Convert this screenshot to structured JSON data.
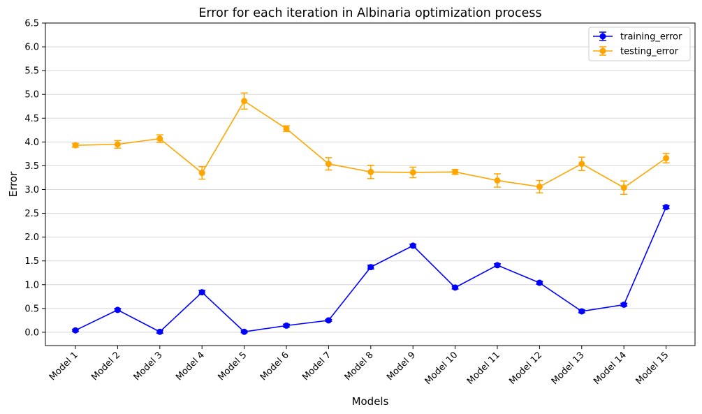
{
  "chart_data": {
    "type": "line",
    "title": "Error for each iteration in Albinaria optimization process",
    "xlabel": "Models",
    "ylabel": "Error",
    "categories": [
      "Model 1",
      "Model 2",
      "Model 3",
      "Model 4",
      "Model 5",
      "Model 6",
      "Model 7",
      "Model 8",
      "Model 9",
      "Model 10",
      "Model 11",
      "Model 12",
      "Model 13",
      "Model 14",
      "Model 15"
    ],
    "ylim": [
      -0.28,
      6.5
    ],
    "yticks": [
      "0.0",
      "0.5",
      "1.0",
      "1.5",
      "2.0",
      "2.5",
      "3.0",
      "3.5",
      "4.0",
      "4.5",
      "5.0",
      "5.5",
      "6.0",
      "6.5"
    ],
    "grid": "horizontal",
    "legend_position": "top-right",
    "series": [
      {
        "name": "training_error",
        "color": "#0000ff",
        "marker": "circle",
        "values": [
          0.04,
          0.47,
          0.01,
          0.84,
          0.01,
          0.14,
          0.25,
          1.37,
          1.82,
          0.94,
          1.41,
          1.04,
          0.44,
          0.58,
          2.63
        ],
        "errors": [
          0.02,
          0.03,
          0.03,
          0.04,
          0.02,
          0.03,
          0.02,
          0.04,
          0.03,
          0.03,
          0.03,
          0.03,
          0.03,
          0.03,
          0.03
        ]
      },
      {
        "name": "testing_error",
        "color": "#ffa500",
        "marker": "circle",
        "values": [
          3.93,
          3.95,
          4.07,
          3.35,
          4.86,
          4.28,
          3.54,
          3.37,
          3.36,
          3.37,
          3.19,
          3.06,
          3.54,
          3.04,
          3.66
        ],
        "errors": [
          0.04,
          0.08,
          0.08,
          0.13,
          0.17,
          0.06,
          0.13,
          0.14,
          0.11,
          0.05,
          0.14,
          0.13,
          0.14,
          0.14,
          0.1
        ]
      }
    ]
  }
}
